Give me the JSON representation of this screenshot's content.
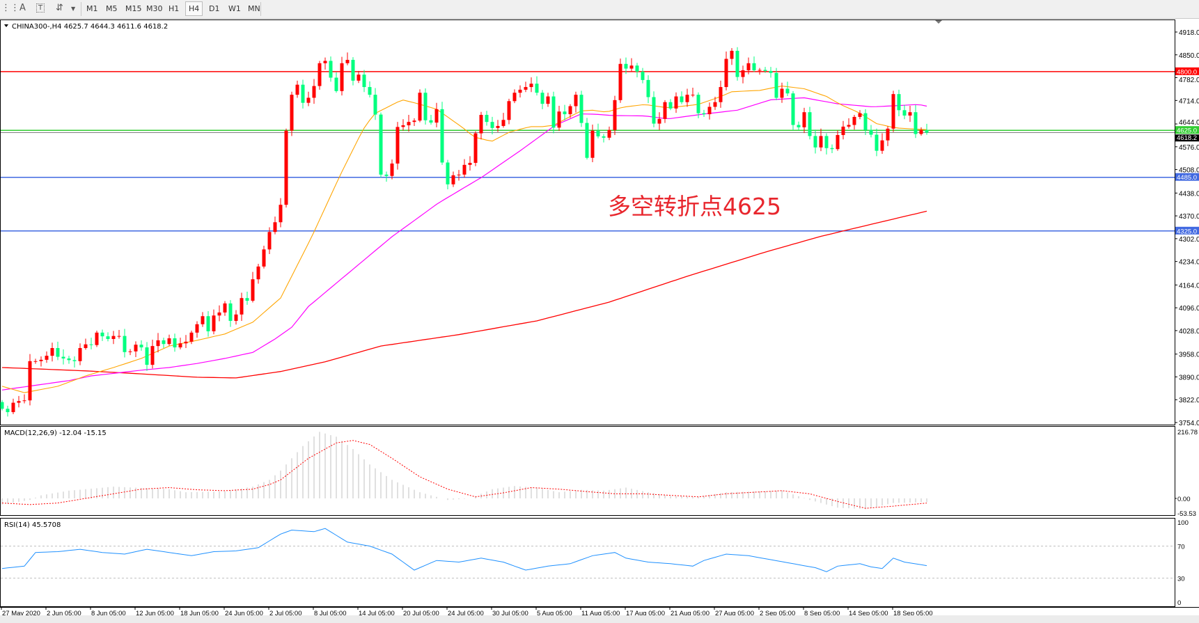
{
  "toolbar": {
    "icons": [
      "grid-icon",
      "text-a-icon",
      "text-label-icon",
      "arrows-icon",
      "dropdown-arrow-icon"
    ],
    "timeframes": [
      "M1",
      "M5",
      "M15",
      "M30",
      "H1",
      "H4",
      "D1",
      "W1",
      "MN"
    ],
    "selected": "H4"
  },
  "chart": {
    "legend": "CHINA300-,H4  4625.7 4644.3 4611.6 4618.2",
    "annotation": "多空转折点4625",
    "colors": {
      "bull": "#ff0000",
      "bear": "#00ff7f",
      "ma_fast": "#ffa500",
      "ma_mid": "#ff00ff",
      "ma_slow": "#ff0000",
      "annotation": "#e8262d",
      "rsi": "#1e90ff",
      "macd_hist": "#c0c0c0",
      "macd_signal": "#ff0000"
    },
    "price_ticks": [
      "4918.0",
      "4850.0",
      "4782.0",
      "4714.0",
      "4644.0",
      "4576.0",
      "4508.0",
      "4438.0",
      "4370.0",
      "4302.0",
      "4234.0",
      "4164.0",
      "4096.0",
      "4028.0",
      "3958.0",
      "3890.0",
      "3822.0",
      "3754.0"
    ],
    "levels": [
      {
        "value": 4800.0,
        "label": "4800.0",
        "color": "#ff0000"
      },
      {
        "value": 4625.0,
        "label": "4625.0",
        "color": "#32cd32"
      },
      {
        "value": 4485.0,
        "label": "4485.0",
        "color": "#4169e1"
      },
      {
        "value": 4325.0,
        "label": "4325.0",
        "color": "#4169e1"
      }
    ],
    "current": {
      "value": 4618.2,
      "label": "4618.2"
    },
    "time_labels": [
      "27 May 2020",
      "2 Jun 05:00",
      "8 Jun 05:00",
      "12 Jun 05:00",
      "18 Jun 05:00",
      "24 Jun 05:00",
      "2 Jul 05:00",
      "8 Jul 05:00",
      "14 Jul 05:00",
      "20 Jul 05:00",
      "24 Jul 05:00",
      "30 Jul 05:00",
      "5 Aug 05:00",
      "11 Aug 05:00",
      "17 Aug 05:00",
      "21 Aug 05:00",
      "27 Aug 05:00",
      "2 Sep 05:00",
      "8 Sep 05:00",
      "14 Sep 05:00",
      "18 Sep 05:00"
    ]
  },
  "chart_data": {
    "type": "candlestick",
    "symbol": "CHINA300-",
    "timeframe": "H4",
    "ylim": [
      3754,
      4918
    ],
    "first_open": 3815,
    "last_bar": {
      "open": 4625.7,
      "high": 4644.3,
      "low": 4611.6,
      "close": 4618.2
    },
    "closes": [
      3795,
      3785,
      3813,
      3818,
      3820,
      3937,
      3937,
      3941,
      3953,
      3976,
      3950,
      3945,
      3940,
      3937,
      3976,
      3987,
      3985,
      4022,
      4011,
      4003,
      4012,
      4012,
      3964,
      3966,
      3986,
      3978,
      3926,
      3982,
      3999,
      3988,
      4005,
      3978,
      3990,
      3995,
      4022,
      4047,
      4071,
      4026,
      4073,
      4082,
      4109,
      4057,
      4076,
      4125,
      4117,
      4181,
      4219,
      4270,
      4322,
      4351,
      4403,
      4624,
      4731,
      4761,
      4707,
      4722,
      4757,
      4825,
      4832,
      4782,
      4742,
      4825,
      4835,
      4773,
      4791,
      4754,
      4731,
      4672,
      4493,
      4489,
      4526,
      4635,
      4640,
      4650,
      4654,
      4737,
      4655,
      4648,
      4688,
      4529,
      4464,
      4491,
      4493,
      4522,
      4528,
      4616,
      4671,
      4650,
      4632,
      4638,
      4656,
      4712,
      4737,
      4746,
      4754,
      4764,
      4737,
      4704,
      4726,
      4633,
      4681,
      4673,
      4697,
      4731,
      4647,
      4543,
      4624,
      4607,
      4603,
      4626,
      4715,
      4823,
      4809,
      4818,
      4800,
      4775,
      4724,
      4645,
      4659,
      4709,
      4690,
      4726,
      4709,
      4731,
      4731,
      4676,
      4673,
      4695,
      4709,
      4754,
      4838,
      4862,
      4784,
      4804,
      4825,
      4804,
      4805,
      4802,
      4796,
      4722,
      4749,
      4735,
      4641,
      4634,
      4679,
      4608,
      4574,
      4608,
      4572,
      4569,
      4611,
      4636,
      4641,
      4665,
      4676,
      4626,
      4612,
      4564,
      4595,
      4630,
      4733,
      4685,
      4669,
      4679,
      4614,
      4626,
      4618.2
    ],
    "ma_fast": [
      [
        0,
        3862
      ],
      [
        4,
        3843
      ],
      [
        10,
        3862
      ],
      [
        15,
        3893
      ],
      [
        20,
        3918
      ],
      [
        25,
        3945
      ],
      [
        30,
        3982
      ],
      [
        35,
        3999
      ],
      [
        40,
        4018
      ],
      [
        45,
        4053
      ],
      [
        50,
        4125
      ],
      [
        55.6,
        4308
      ],
      [
        60.6,
        4488
      ],
      [
        64.75,
        4626
      ],
      [
        66.8,
        4674
      ],
      [
        71.8,
        4716
      ],
      [
        74.3,
        4706
      ],
      [
        78,
        4688
      ],
      [
        82.7,
        4633
      ],
      [
        84.75,
        4605
      ],
      [
        87.9,
        4592
      ],
      [
        91,
        4619
      ],
      [
        94.75,
        4636
      ],
      [
        97,
        4636
      ],
      [
        99,
        4640
      ],
      [
        101.4,
        4661
      ],
      [
        104,
        4683
      ],
      [
        106,
        4685
      ],
      [
        108.5,
        4679
      ],
      [
        111.4,
        4694
      ],
      [
        115.4,
        4702
      ],
      [
        119.5,
        4692
      ],
      [
        124.9,
        4702
      ],
      [
        128.6,
        4723
      ],
      [
        131,
        4740
      ],
      [
        136,
        4744
      ],
      [
        140,
        4757
      ],
      [
        144,
        4749
      ],
      [
        148,
        4726
      ],
      [
        150.5,
        4702
      ],
      [
        153.8,
        4678
      ],
      [
        157,
        4645
      ],
      [
        160.4,
        4632
      ],
      [
        166,
        4627
      ]
    ],
    "ma_mid": [
      [
        0,
        3851
      ],
      [
        12,
        3879
      ],
      [
        16,
        3893
      ],
      [
        25,
        3910
      ],
      [
        30,
        3918
      ],
      [
        35,
        3930
      ],
      [
        40,
        3945
      ],
      [
        45,
        3963
      ],
      [
        49,
        4003
      ],
      [
        52,
        4038
      ],
      [
        55,
        4100
      ],
      [
        70,
        4308
      ],
      [
        78.3,
        4408
      ],
      [
        86,
        4484
      ],
      [
        93,
        4564
      ],
      [
        99.3,
        4640
      ],
      [
        104,
        4674
      ],
      [
        106.5,
        4673
      ],
      [
        109.75,
        4669
      ],
      [
        115.4,
        4668
      ],
      [
        119.5,
        4659
      ],
      [
        125.75,
        4673
      ],
      [
        132,
        4685
      ],
      [
        138,
        4716
      ],
      [
        144,
        4722
      ],
      [
        150,
        4704
      ],
      [
        156.25,
        4695
      ],
      [
        164.6,
        4702
      ],
      [
        166,
        4697
      ]
    ],
    "ma_slow": [
      [
        0,
        3918
      ],
      [
        15,
        3908
      ],
      [
        25,
        3899
      ],
      [
        35,
        3889
      ],
      [
        42,
        3887
      ],
      [
        50,
        3906
      ],
      [
        58,
        3935
      ],
      [
        68,
        3982
      ],
      [
        82,
        4016
      ],
      [
        96,
        4057
      ],
      [
        109,
        4113
      ],
      [
        123,
        4190
      ],
      [
        137,
        4262
      ],
      [
        147,
        4309
      ],
      [
        152,
        4329
      ],
      [
        166,
        4384
      ]
    ],
    "macd": {
      "label": "MACD(12,26,9) -12.04 -15.15",
      "ylim": [
        -53.53,
        216.78
      ],
      "ticks": [
        "216.78",
        "0.00",
        "-53.53"
      ],
      "main": [
        [
          0,
          -20
        ],
        [
          5,
          -5
        ],
        [
          7,
          10
        ],
        [
          12,
          25
        ],
        [
          20,
          38
        ],
        [
          30,
          30
        ],
        [
          33,
          20
        ],
        [
          40,
          23
        ],
        [
          45,
          38
        ],
        [
          48,
          60
        ],
        [
          50,
          90
        ],
        [
          52,
          130
        ],
        [
          54,
          170
        ],
        [
          57,
          216
        ],
        [
          60,
          200
        ],
        [
          63,
          160
        ],
        [
          66,
          110
        ],
        [
          70,
          60
        ],
        [
          75,
          20
        ],
        [
          80,
          -5
        ],
        [
          84,
          0
        ],
        [
          88,
          30
        ],
        [
          92,
          40
        ],
        [
          96,
          35
        ],
        [
          100,
          20
        ],
        [
          104,
          28
        ],
        [
          108,
          25
        ],
        [
          112,
          35
        ],
        [
          116,
          20
        ],
        [
          120,
          8
        ],
        [
          125,
          5
        ],
        [
          130,
          20
        ],
        [
          135,
          22
        ],
        [
          140,
          25
        ],
        [
          145,
          -5
        ],
        [
          150,
          -30
        ],
        [
          155,
          -35
        ],
        [
          160,
          -15
        ],
        [
          166,
          -12.04
        ]
      ],
      "signal": [
        [
          0,
          -15
        ],
        [
          5,
          -20
        ],
        [
          10,
          -15
        ],
        [
          15,
          0
        ],
        [
          20,
          15
        ],
        [
          25,
          30
        ],
        [
          30,
          35
        ],
        [
          35,
          28
        ],
        [
          40,
          25
        ],
        [
          45,
          30
        ],
        [
          48,
          45
        ],
        [
          50,
          60
        ],
        [
          55,
          130
        ],
        [
          60,
          180
        ],
        [
          63,
          188
        ],
        [
          66,
          175
        ],
        [
          70,
          130
        ],
        [
          75,
          70
        ],
        [
          80,
          30
        ],
        [
          85,
          5
        ],
        [
          90,
          18
        ],
        [
          95,
          35
        ],
        [
          100,
          30
        ],
        [
          105,
          22
        ],
        [
          110,
          15
        ],
        [
          115,
          15
        ],
        [
          120,
          10
        ],
        [
          125,
          5
        ],
        [
          130,
          15
        ],
        [
          135,
          20
        ],
        [
          140,
          25
        ],
        [
          145,
          15
        ],
        [
          150,
          -10
        ],
        [
          155,
          -32
        ],
        [
          160,
          -25
        ],
        [
          166,
          -15.15
        ]
      ]
    },
    "rsi": {
      "label": "RSI(14) 45.5708",
      "ylim": [
        0,
        100
      ],
      "ticks": [
        "100",
        "70",
        "30",
        "0"
      ],
      "levels": [
        70,
        30
      ],
      "values": [
        [
          0,
          42
        ],
        [
          4,
          45
        ],
        [
          6,
          62
        ],
        [
          10,
          63
        ],
        [
          14,
          66
        ],
        [
          18,
          62
        ],
        [
          22,
          60
        ],
        [
          26,
          66
        ],
        [
          30,
          62
        ],
        [
          34,
          58
        ],
        [
          38,
          63
        ],
        [
          42,
          64
        ],
        [
          46,
          68
        ],
        [
          50,
          85
        ],
        [
          52,
          90
        ],
        [
          56,
          88
        ],
        [
          58,
          92
        ],
        [
          62,
          75
        ],
        [
          66,
          70
        ],
        [
          70,
          60
        ],
        [
          74,
          40
        ],
        [
          78,
          52
        ],
        [
          82,
          50
        ],
        [
          86,
          55
        ],
        [
          90,
          50
        ],
        [
          94,
          40
        ],
        [
          98,
          45
        ],
        [
          102,
          48
        ],
        [
          106,
          58
        ],
        [
          110,
          62
        ],
        [
          112,
          55
        ],
        [
          116,
          50
        ],
        [
          120,
          48
        ],
        [
          124,
          45
        ],
        [
          126,
          52
        ],
        [
          130,
          60
        ],
        [
          134,
          58
        ],
        [
          138,
          53
        ],
        [
          142,
          48
        ],
        [
          146,
          43
        ],
        [
          148,
          38
        ],
        [
          150,
          45
        ],
        [
          154,
          48
        ],
        [
          156,
          44
        ],
        [
          158,
          42
        ],
        [
          160,
          55
        ],
        [
          162,
          50
        ],
        [
          166,
          45.5708
        ]
      ]
    }
  }
}
